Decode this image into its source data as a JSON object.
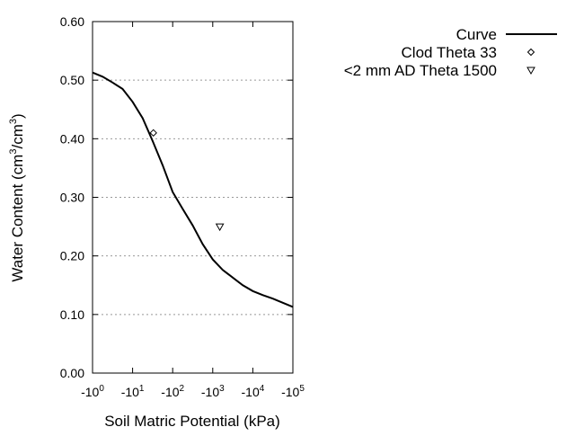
{
  "chart_data": {
    "type": "line",
    "title": "",
    "xlabel": "Soil Matric Potential (kPa)",
    "ylabel_parts": [
      "Water Content (cm",
      "3",
      "/cm",
      "3",
      ")"
    ],
    "x_scale": "log (negative)",
    "xlim": [
      -1,
      -100000
    ],
    "ylim": [
      0,
      0.6
    ],
    "x_ticks": [
      {
        "base": "-10",
        "exp": "0",
        "value": -1
      },
      {
        "base": "-10",
        "exp": "1",
        "value": -10
      },
      {
        "base": "-10",
        "exp": "2",
        "value": -100
      },
      {
        "base": "-10",
        "exp": "3",
        "value": -1000
      },
      {
        "base": "-10",
        "exp": "4",
        "value": -10000
      },
      {
        "base": "-10",
        "exp": "5",
        "value": -100000
      }
    ],
    "y_ticks": [
      "0.00",
      "0.10",
      "0.20",
      "0.30",
      "0.40",
      "0.50",
      "0.60"
    ],
    "grid": "horizontal dotted",
    "legend_position": "right, outside",
    "series": [
      {
        "name": "Curve",
        "kind": "line",
        "color": "#000000",
        "x": [
          -1,
          -1.78,
          -3.16,
          -5.62,
          -10,
          -17.8,
          -31.6,
          -56.2,
          -100,
          -178,
          -316,
          -562,
          -1000,
          -1778,
          -3162,
          -5623,
          -10000,
          -17783,
          -31623,
          -56234,
          -100000
        ],
        "y": [
          0.513,
          0.506,
          0.496,
          0.485,
          0.463,
          0.435,
          0.396,
          0.355,
          0.309,
          0.28,
          0.252,
          0.22,
          0.194,
          0.176,
          0.163,
          0.15,
          0.14,
          0.133,
          0.127,
          0.12,
          0.113
        ]
      },
      {
        "name": "Clod Theta 33",
        "kind": "point",
        "marker": "diamond",
        "x": [
          -33
        ],
        "y": [
          0.41
        ]
      },
      {
        "name": "<2 mm AD Theta 1500",
        "kind": "point",
        "marker": "triangle-down",
        "x": [
          -1500
        ],
        "y": [
          0.25
        ]
      }
    ]
  }
}
